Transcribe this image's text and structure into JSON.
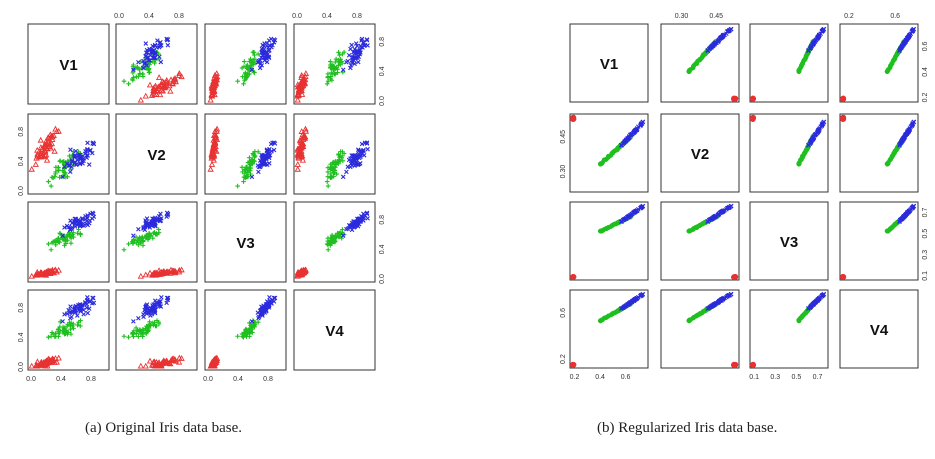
{
  "chart_data": [
    {
      "type": "scatter-matrix",
      "caption": "(a) Original Iris data base.",
      "variables": [
        "V1",
        "V2",
        "V3",
        "V4"
      ],
      "range": [
        0,
        1
      ],
      "ticks": {
        "outer": [
          "0.0",
          "0.4",
          "0.8"
        ],
        "inner": [
          "0.0",
          "0.4",
          "0.8"
        ]
      },
      "classes": [
        {
          "color": "#e83232",
          "marker": "triangle",
          "centroid": [
            0.2,
            0.6,
            0.08,
            0.06
          ],
          "spread": [
            0.1,
            0.16,
            0.03,
            0.04
          ]
        },
        {
          "color": "#1fbf1f",
          "marker": "plus",
          "centroid": [
            0.45,
            0.32,
            0.55,
            0.5
          ],
          "spread": [
            0.14,
            0.14,
            0.07,
            0.08
          ]
        },
        {
          "color": "#2b2bdc",
          "marker": "cross",
          "centroid": [
            0.64,
            0.44,
            0.77,
            0.8
          ],
          "spread": [
            0.16,
            0.13,
            0.08,
            0.1
          ]
        }
      ]
    },
    {
      "type": "scatter-matrix",
      "caption": "(b) Regularized Iris data base.",
      "variables": [
        "V1",
        "V2",
        "V3",
        "V4"
      ],
      "ticks": {
        "top": [
          {
            "col": 1,
            "labels": [
              {
                "v": 0.3,
                "t": "0.30"
              },
              {
                "v": 0.45,
                "t": "0.45"
              }
            ]
          },
          {
            "col": 3,
            "labels": [
              {
                "v": 0.2,
                "t": "0.2"
              },
              {
                "v": 0.6,
                "t": "0.6"
              }
            ]
          }
        ],
        "bottom": [
          {
            "col": 0,
            "labels": [
              {
                "v": 0.2,
                "t": "0.2"
              },
              {
                "v": 0.4,
                "t": "0.4"
              },
              {
                "v": 0.6,
                "t": "0.6"
              }
            ]
          },
          {
            "col": 2,
            "labels": [
              {
                "v": 0.1,
                "t": "0.1"
              },
              {
                "v": 0.3,
                "t": "0.3"
              },
              {
                "v": 0.5,
                "t": "0.5"
              },
              {
                "v": 0.7,
                "t": "0.7"
              }
            ]
          }
        ],
        "left": [
          {
            "row": 1,
            "labels": [
              {
                "v": 0.3,
                "t": "0.30"
              },
              {
                "v": 0.45,
                "t": "0.45"
              }
            ]
          },
          {
            "row": 3,
            "labels": [
              {
                "v": 0.2,
                "t": "0.2"
              },
              {
                "v": 0.6,
                "t": "0.6"
              }
            ]
          }
        ],
        "right": [
          {
            "row": 0,
            "labels": [
              {
                "v": 0.2,
                "t": "0.2"
              },
              {
                "v": 0.4,
                "t": "0.4"
              },
              {
                "v": 0.6,
                "t": "0.6"
              }
            ]
          },
          {
            "row": 2,
            "labels": [
              {
                "v": 0.1,
                "t": "0.1"
              },
              {
                "v": 0.3,
                "t": "0.3"
              },
              {
                "v": 0.5,
                "t": "0.5"
              },
              {
                "v": 0.7,
                "t": "0.7"
              }
            ]
          }
        ]
      },
      "var_ranges": [
        [
          0.18,
          0.76
        ],
        [
          0.22,
          0.54
        ],
        [
          0.08,
          0.78
        ],
        [
          0.14,
          0.78
        ]
      ],
      "classes": [
        {
          "color": "#e83232",
          "marker": "circle",
          "values": [
            0.19,
            0.53,
            0.09,
            0.15
          ]
        },
        {
          "color": "#1fbf1f",
          "marker": "circle",
          "curve_from": [
            0.4,
            0.33,
            0.52,
            0.53
          ],
          "curve_to": [
            0.64,
            0.45,
            0.66,
            0.68
          ]
        },
        {
          "color": "#2b2bdc",
          "marker": "cross",
          "curve_from": [
            0.56,
            0.41,
            0.61,
            0.63
          ],
          "curve_to": [
            0.75,
            0.52,
            0.77,
            0.77
          ]
        }
      ]
    }
  ]
}
